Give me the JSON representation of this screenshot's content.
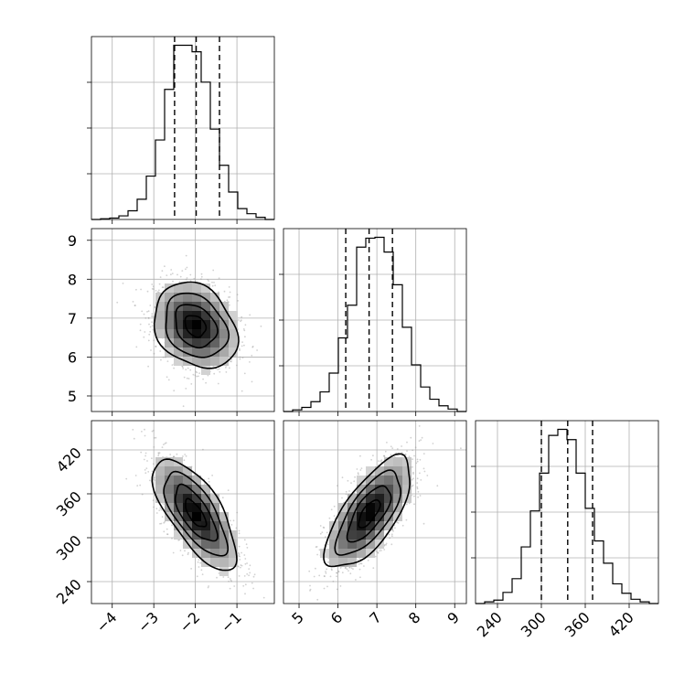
{
  "chart_data": {
    "type": "corner",
    "parameters": [
      {
        "xlim": [
          -4.5,
          -0.1
        ],
        "ticks": [
          -4,
          -3,
          -2,
          -1
        ],
        "tick_labels": [
          "−4",
          "−3",
          "−2",
          "−1"
        ],
        "histogram": {
          "edges": [
            -4.5,
            -4.28,
            -4.06,
            -3.84,
            -3.62,
            -3.4,
            -3.18,
            -2.96,
            -2.74,
            -2.52,
            -2.3,
            -2.08,
            -1.86,
            -1.64,
            -1.42,
            -1.2,
            -0.98,
            -0.76,
            -0.54,
            -0.32,
            -0.1
          ],
          "counts": [
            0,
            1,
            2,
            5,
            12,
            28,
            60,
            110,
            180,
            241,
            241,
            232,
            190,
            125,
            75,
            38,
            15,
            8,
            3,
            0
          ]
        },
        "quantiles": [
          -2.5,
          -1.98,
          -1.42
        ]
      },
      {
        "xlim": [
          4.6,
          9.3
        ],
        "ticks": [
          5,
          6,
          7,
          8,
          9
        ],
        "tick_labels": [
          "5",
          "6",
          "7",
          "8",
          "9"
        ],
        "histogram": {
          "edges": [
            4.6,
            4.835,
            5.07,
            5.305,
            5.54,
            5.775,
            6.01,
            6.245,
            6.48,
            6.715,
            6.95,
            7.185,
            7.42,
            7.655,
            7.89,
            8.125,
            8.36,
            8.595,
            8.83,
            9.065,
            9.3
          ],
          "counts": [
            0,
            2,
            5,
            12,
            24,
            47,
            90,
            130,
            201,
            212,
            213,
            195,
            155,
            103,
            57,
            30,
            15,
            7,
            3,
            0
          ]
        },
        "quantiles": [
          6.2,
          6.8,
          7.4
        ]
      },
      {
        "xlim": [
          210,
          460
        ],
        "ticks": [
          240,
          300,
          360,
          420
        ],
        "tick_labels": [
          "240",
          "300",
          "360",
          "420"
        ],
        "histogram": {
          "edges": [
            210,
            222.5,
            235,
            247.5,
            260,
            272.5,
            285,
            297.5,
            310,
            322.5,
            335,
            347.5,
            360,
            372.5,
            385,
            397.5,
            410,
            422.5,
            435,
            447.5,
            460
          ],
          "counts": [
            0,
            2,
            4,
            13,
            29,
            66,
            108,
            152,
            196,
            203,
            191,
            152,
            111,
            73,
            47,
            23,
            12,
            5,
            2,
            0
          ]
        },
        "quantiles": [
          300,
          336,
          370
        ]
      }
    ],
    "y_tick_labels": {
      "row2": [
        "5",
        "6",
        "7",
        "8",
        "9"
      ],
      "row3": [
        "240",
        "300",
        "360",
        "420"
      ]
    },
    "pairs": [
      {
        "x_param": 0,
        "y_param": 1,
        "center": [
          -2.0,
          6.8
        ],
        "sd": [
          0.5,
          0.55
        ],
        "rho": -0.25
      },
      {
        "x_param": 0,
        "y_param": 2,
        "center": [
          -2.0,
          333
        ],
        "sd": [
          0.5,
          38
        ],
        "rho": -0.7
      },
      {
        "x_param": 1,
        "y_param": 2,
        "center": [
          6.8,
          333
        ],
        "sd": [
          0.55,
          38
        ],
        "rho": 0.7
      }
    ],
    "contour_levels": [
      0.5,
      1.0,
      1.5,
      2.0
    ],
    "grid": true
  }
}
